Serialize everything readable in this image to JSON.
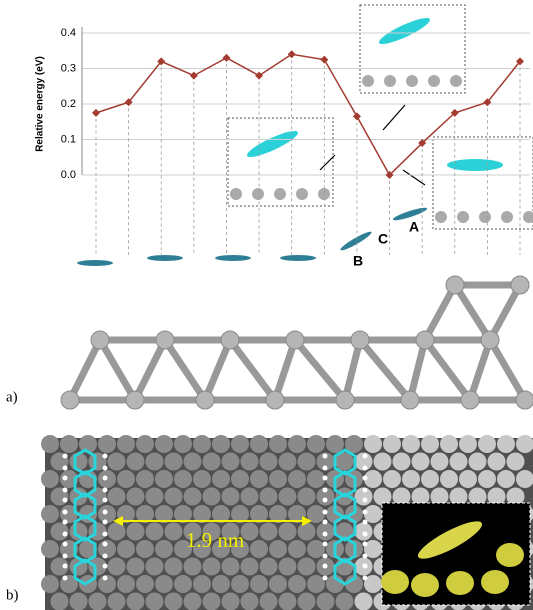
{
  "chart_data": {
    "type": "line",
    "y_label": "Relative energy (eV)",
    "categories": [
      null,
      null,
      null,
      null,
      null,
      null,
      null,
      null,
      null,
      null,
      null,
      null,
      null,
      null
    ],
    "series": [
      {
        "color": "#a33b30",
        "values": [
          0.175,
          0.205,
          0.32,
          0.28,
          0.33,
          0.28,
          0.34,
          0.325,
          0.165,
          0.0,
          0.09,
          0.175,
          0.205,
          0.32
        ]
      }
    ],
    "ylim": [
      0.0,
      0.4
    ],
    "yticks": [
      {
        "value": 0,
        "label": "0.0"
      },
      0.1,
      0.2,
      0.3,
      0.4
    ],
    "grid": true,
    "annotations": [
      "B",
      "C",
      "A"
    ]
  },
  "panel_labels": [
    "a)",
    "b)"
  ],
  "distance_label": "1.9 nm"
}
